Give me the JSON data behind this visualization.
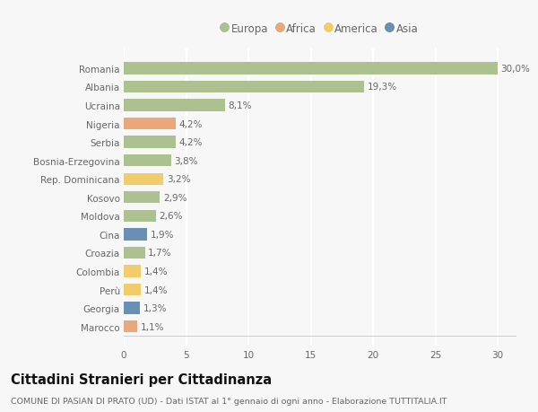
{
  "countries": [
    "Romania",
    "Albania",
    "Ucraina",
    "Nigeria",
    "Serbia",
    "Bosnia-Erzegovina",
    "Rep. Dominicana",
    "Kosovo",
    "Moldova",
    "Cina",
    "Croazia",
    "Colombia",
    "Perù",
    "Georgia",
    "Marocco"
  ],
  "values": [
    30.0,
    19.3,
    8.1,
    4.2,
    4.2,
    3.8,
    3.2,
    2.9,
    2.6,
    1.9,
    1.7,
    1.4,
    1.4,
    1.3,
    1.1
  ],
  "labels": [
    "30,0%",
    "19,3%",
    "8,1%",
    "4,2%",
    "4,2%",
    "3,8%",
    "3,2%",
    "2,9%",
    "2,6%",
    "1,9%",
    "1,7%",
    "1,4%",
    "1,4%",
    "1,3%",
    "1,1%"
  ],
  "continents": [
    "Europa",
    "Europa",
    "Europa",
    "Africa",
    "Europa",
    "Europa",
    "America",
    "Europa",
    "Europa",
    "Asia",
    "Europa",
    "America",
    "America",
    "Asia",
    "Africa"
  ],
  "colors": {
    "Europa": "#adc190",
    "Africa": "#e8a87c",
    "America": "#f0cc6a",
    "Asia": "#6a8fb5"
  },
  "xlim": [
    0,
    31.5
  ],
  "xticks": [
    0,
    5,
    10,
    15,
    20,
    25,
    30
  ],
  "title": "Cittadini Stranieri per Cittadinanza",
  "subtitle": "COMUNE DI PASIAN DI PRATO (UD) - Dati ISTAT al 1° gennaio di ogni anno - Elaborazione TUTTITALIA.IT",
  "bg_color": "#f7f7f7",
  "grid_color": "#ffffff",
  "bar_height": 0.65,
  "label_fontsize": 7.5,
  "tick_fontsize": 7.5,
  "title_fontsize": 10.5,
  "subtitle_fontsize": 6.8,
  "legend_order": [
    "Europa",
    "Africa",
    "America",
    "Asia"
  ]
}
